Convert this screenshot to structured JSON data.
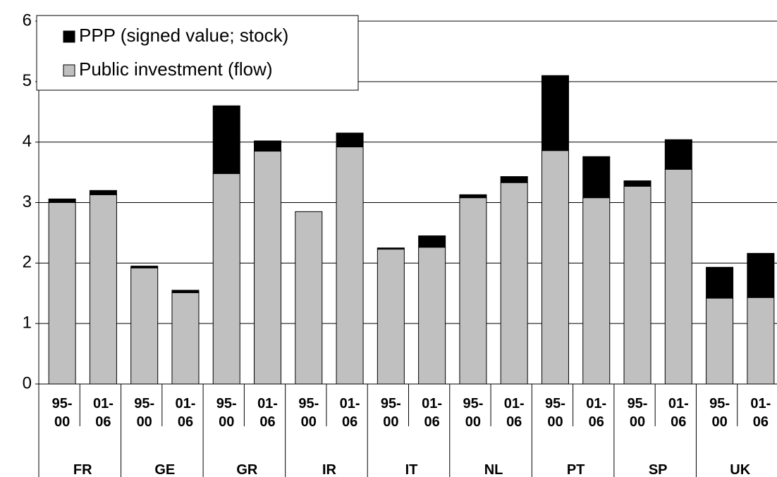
{
  "chart_data": {
    "type": "stacked_bar",
    "groups": [
      "FR",
      "GE",
      "GR",
      "IR",
      "IT",
      "NL",
      "PT",
      "SP",
      "UK"
    ],
    "categories": [
      "95-\n00",
      "01-\n06",
      "95-\n00",
      "01-\n06",
      "95-\n00",
      "01-\n06",
      "95-\n00",
      "01-\n06",
      "95-\n00",
      "01-\n06",
      "95-\n00",
      "01-\n06",
      "95-\n00",
      "01-\n06",
      "95-\n00",
      "01-\n06",
      "95-\n00",
      "01-\n06"
    ],
    "series": [
      {
        "name": "Public investment (flow)",
        "color": "#c0c0c0",
        "values": [
          3.0,
          3.13,
          1.92,
          1.51,
          3.48,
          3.85,
          2.85,
          3.92,
          2.23,
          2.26,
          3.08,
          3.33,
          3.86,
          3.08,
          3.27,
          3.55,
          1.42,
          1.43
        ]
      },
      {
        "name": "PPP (signed value; stock)",
        "color": "#000000",
        "values": [
          0.06,
          0.07,
          0.03,
          0.04,
          1.12,
          0.17,
          0,
          0.23,
          0.02,
          0.19,
          0.05,
          0.1,
          1.24,
          0.68,
          0.09,
          0.49,
          0.51,
          0.73
        ]
      }
    ],
    "ylim": [
      0,
      6
    ],
    "yticks": [
      0,
      1,
      2,
      3,
      4,
      5,
      6
    ],
    "grid": true,
    "legend": "upper left"
  }
}
